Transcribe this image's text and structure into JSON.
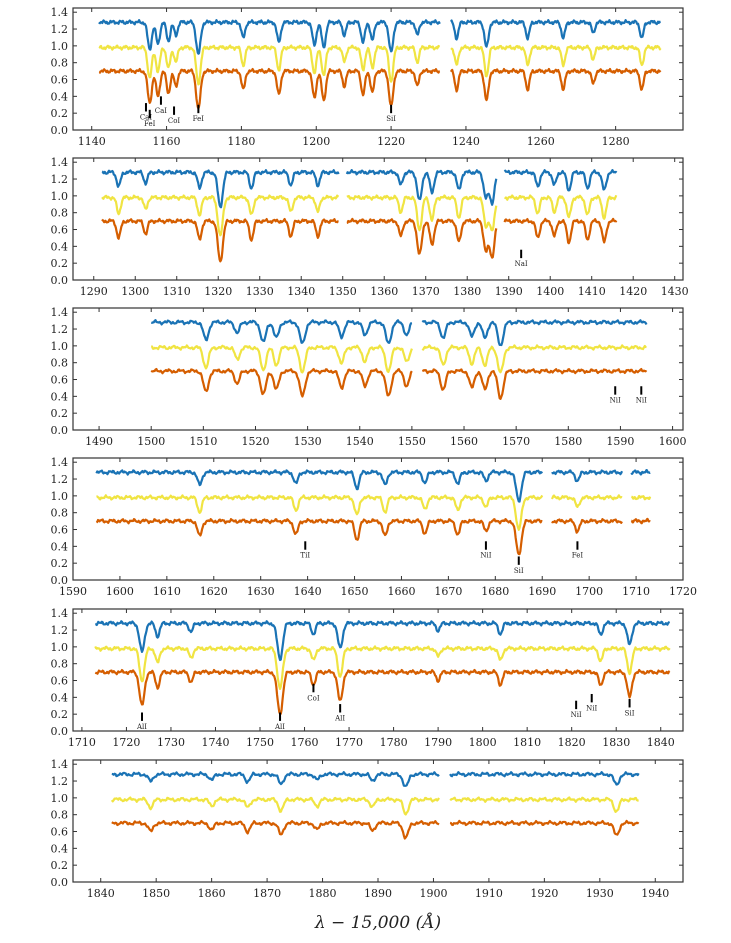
{
  "chart_data": {
    "type": "line",
    "xlabel": "λ − 15,000 (Å)",
    "ylim": [
      0.0,
      1.45
    ],
    "yticks": [
      0.0,
      0.2,
      0.4,
      0.6,
      0.8,
      1.0,
      1.2,
      1.4
    ],
    "series": [
      {
        "name": "blue",
        "color": "#1a73b5",
        "offset": 1.28
      },
      {
        "name": "yellow",
        "color": "#f0e442",
        "offset": 0.98
      },
      {
        "name": "orange",
        "color": "#d55e00",
        "offset": 0.7
      }
    ],
    "panels": [
      {
        "xlim": [
          1135,
          1298
        ],
        "xticks": [
          1140,
          1160,
          1180,
          1200,
          1220,
          1240,
          1260,
          1280
        ],
        "segments": [
          [
            1142,
            1233
          ],
          [
            1236,
            1292
          ]
        ],
        "absorption_lines": [
          {
            "x": 1155.5,
            "depth": 0.38
          },
          {
            "x": 1157.7,
            "depth": 0.3
          },
          {
            "x": 1160.5,
            "depth": 0.26
          },
          {
            "x": 1162.5,
            "depth": 0.18
          },
          {
            "x": 1168.5,
            "depth": 0.45
          },
          {
            "x": 1180.5,
            "depth": 0.22
          },
          {
            "x": 1190.0,
            "depth": 0.28
          },
          {
            "x": 1199.5,
            "depth": 0.32
          },
          {
            "x": 1202.0,
            "depth": 0.35
          },
          {
            "x": 1207.5,
            "depth": 0.18
          },
          {
            "x": 1212.5,
            "depth": 0.28
          },
          {
            "x": 1215.0,
            "depth": 0.25
          },
          {
            "x": 1220.0,
            "depth": 0.42
          },
          {
            "x": 1227.0,
            "depth": 0.18
          },
          {
            "x": 1237.5,
            "depth": 0.22
          },
          {
            "x": 1245.5,
            "depth": 0.35
          },
          {
            "x": 1256.5,
            "depth": 0.22
          },
          {
            "x": 1266.0,
            "depth": 0.22
          },
          {
            "x": 1274.0,
            "depth": 0.15
          },
          {
            "x": 1287.0,
            "depth": 0.22
          }
        ],
        "markers": [
          {
            "x": 1154.5,
            "label": "CaI",
            "bottom": 0.22
          },
          {
            "x": 1155.5,
            "label": "FeI",
            "bottom": 0.14
          },
          {
            "x": 1158.5,
            "label": "CaI",
            "bottom": 0.3
          },
          {
            "x": 1162.0,
            "label": "CoI",
            "bottom": 0.18
          },
          {
            "x": 1168.5,
            "label": "FeI",
            "bottom": 0.2
          },
          {
            "x": 1220.0,
            "label": "SiI",
            "bottom": 0.2
          }
        ]
      },
      {
        "xlim": [
          1285,
          1432
        ],
        "xticks": [
          1290,
          1300,
          1310,
          1320,
          1330,
          1340,
          1350,
          1360,
          1370,
          1380,
          1390,
          1400,
          1410,
          1420,
          1430
        ],
        "segments": [
          [
            1292,
            1349
          ],
          [
            1351,
            1387
          ],
          [
            1389,
            1416
          ]
        ],
        "absorption_lines": [
          {
            "x": 1296.0,
            "depth": 0.2
          },
          {
            "x": 1302.5,
            "depth": 0.15
          },
          {
            "x": 1315.5,
            "depth": 0.22
          },
          {
            "x": 1320.5,
            "depth": 0.48
          },
          {
            "x": 1328.0,
            "depth": 0.22
          },
          {
            "x": 1337.5,
            "depth": 0.18
          },
          {
            "x": 1344.0,
            "depth": 0.18
          },
          {
            "x": 1364.0,
            "depth": 0.18
          },
          {
            "x": 1368.5,
            "depth": 0.4
          },
          {
            "x": 1371.5,
            "depth": 0.28
          },
          {
            "x": 1378.0,
            "depth": 0.25
          },
          {
            "x": 1384.5,
            "depth": 0.35
          },
          {
            "x": 1386.0,
            "depth": 0.42
          },
          {
            "x": 1397.0,
            "depth": 0.2
          },
          {
            "x": 1401.0,
            "depth": 0.18
          },
          {
            "x": 1404.5,
            "depth": 0.25
          },
          {
            "x": 1409.0,
            "depth": 0.22
          },
          {
            "x": 1413.0,
            "depth": 0.25
          }
        ],
        "markers": [
          {
            "x": 1393.0,
            "label": "NaI",
            "bottom": 0.26
          }
        ]
      },
      {
        "xlim": [
          1485,
          1602
        ],
        "xticks": [
          1490,
          1500,
          1510,
          1520,
          1530,
          1540,
          1550,
          1560,
          1570,
          1580,
          1590,
          1600
        ],
        "segments": [
          [
            1500,
            1550
          ],
          [
            1552,
            1595
          ]
        ],
        "absorption_lines": [
          {
            "x": 1510.5,
            "depth": 0.25
          },
          {
            "x": 1516.5,
            "depth": 0.15
          },
          {
            "x": 1521.5,
            "depth": 0.28
          },
          {
            "x": 1524.0,
            "depth": 0.22
          },
          {
            "x": 1529.0,
            "depth": 0.3
          },
          {
            "x": 1536.5,
            "depth": 0.2
          },
          {
            "x": 1541.0,
            "depth": 0.18
          },
          {
            "x": 1545.5,
            "depth": 0.3
          },
          {
            "x": 1549.0,
            "depth": 0.18
          },
          {
            "x": 1556.0,
            "depth": 0.22
          },
          {
            "x": 1561.5,
            "depth": 0.2
          },
          {
            "x": 1564.0,
            "depth": 0.22
          },
          {
            "x": 1567.0,
            "depth": 0.32
          }
        ],
        "markers": [
          {
            "x": 1589.0,
            "label": "NiI",
            "bottom": 0.42
          },
          {
            "x": 1594.0,
            "label": "NiI",
            "bottom": 0.42
          }
        ]
      },
      {
        "xlim": [
          1590,
          1720
        ],
        "xticks": [
          1590,
          1600,
          1610,
          1620,
          1630,
          1640,
          1650,
          1660,
          1670,
          1680,
          1690,
          1700,
          1710,
          1720
        ],
        "segments": [
          [
            1595,
            1690
          ],
          [
            1692,
            1707
          ],
          [
            1709,
            1713
          ]
        ],
        "absorption_lines": [
          {
            "x": 1617.0,
            "depth": 0.18
          },
          {
            "x": 1637.5,
            "depth": 0.16
          },
          {
            "x": 1650.5,
            "depth": 0.22
          },
          {
            "x": 1656.5,
            "depth": 0.18
          },
          {
            "x": 1665.0,
            "depth": 0.15
          },
          {
            "x": 1672.0,
            "depth": 0.16
          },
          {
            "x": 1678.0,
            "depth": 0.12
          },
          {
            "x": 1685.0,
            "depth": 0.4
          },
          {
            "x": 1697.5,
            "depth": 0.12
          }
        ],
        "markers": [
          {
            "x": 1639.5,
            "label": "TiI",
            "bottom": 0.36
          },
          {
            "x": 1678.0,
            "label": "NiI",
            "bottom": 0.36
          },
          {
            "x": 1685.0,
            "label": "SiI",
            "bottom": 0.18
          },
          {
            "x": 1697.5,
            "label": "FeI",
            "bottom": 0.36
          }
        ]
      },
      {
        "xlim": [
          1708,
          1845
        ],
        "xticks": [
          1710,
          1720,
          1730,
          1740,
          1750,
          1760,
          1770,
          1780,
          1790,
          1800,
          1810,
          1820,
          1830,
          1840
        ],
        "segments": [
          [
            1713,
            1842
          ]
        ],
        "absorption_lines": [
          {
            "x": 1723.5,
            "depth": 0.4
          },
          {
            "x": 1727.0,
            "depth": 0.18
          },
          {
            "x": 1734.5,
            "depth": 0.12
          },
          {
            "x": 1754.5,
            "depth": 0.5
          },
          {
            "x": 1762.0,
            "depth": 0.15
          },
          {
            "x": 1768.0,
            "depth": 0.35
          },
          {
            "x": 1790.0,
            "depth": 0.1
          },
          {
            "x": 1804.0,
            "depth": 0.15
          },
          {
            "x": 1826.5,
            "depth": 0.16
          },
          {
            "x": 1833.0,
            "depth": 0.3
          }
        ],
        "markers": [
          {
            "x": 1723.5,
            "label": "AlI",
            "bottom": 0.12
          },
          {
            "x": 1754.5,
            "label": "AlI",
            "bottom": 0.12
          },
          {
            "x": 1762.0,
            "label": "CoI",
            "bottom": 0.46
          },
          {
            "x": 1768.0,
            "label": "AlI",
            "bottom": 0.22
          },
          {
            "x": 1821.0,
            "label": "NiI",
            "bottom": 0.26
          },
          {
            "x": 1824.5,
            "label": "NiI",
            "bottom": 0.34
          },
          {
            "x": 1833.0,
            "label": "SiI",
            "bottom": 0.28
          }
        ]
      },
      {
        "xlim": [
          1835,
          1945
        ],
        "xticks": [
          1840,
          1850,
          1860,
          1870,
          1880,
          1890,
          1900,
          1910,
          1920,
          1930,
          1940
        ],
        "segments": [
          [
            1842,
            1901
          ],
          [
            1903,
            1937
          ]
        ],
        "absorption_lines": [
          {
            "x": 1849.0,
            "depth": 0.1
          },
          {
            "x": 1860.0,
            "depth": 0.08
          },
          {
            "x": 1866.5,
            "depth": 0.1
          },
          {
            "x": 1872.5,
            "depth": 0.14
          },
          {
            "x": 1879.0,
            "depth": 0.08
          },
          {
            "x": 1889.0,
            "depth": 0.09
          },
          {
            "x": 1895.0,
            "depth": 0.18
          },
          {
            "x": 1933.0,
            "depth": 0.15
          }
        ],
        "markers": []
      }
    ]
  }
}
